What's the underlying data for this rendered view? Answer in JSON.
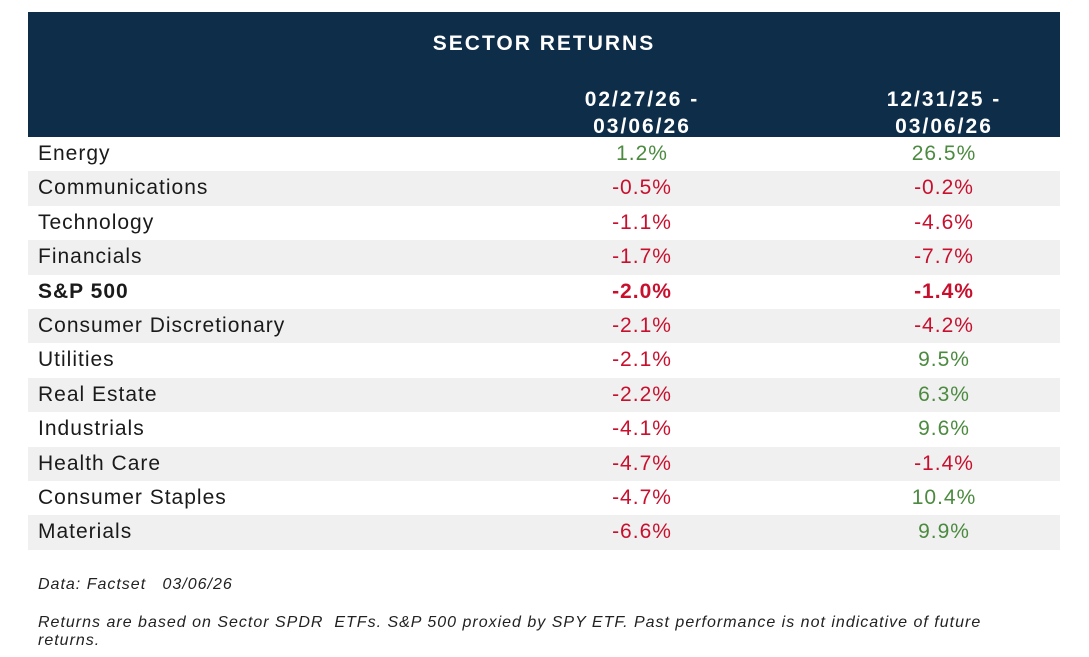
{
  "header": {
    "title": "SECTOR RETURNS",
    "col1_line1": "02/27/26 -",
    "col1_line2": "03/06/26",
    "col2_line1": "12/31/25 -",
    "col2_line2": "03/06/26"
  },
  "colors": {
    "header_bg": "#0e2d49",
    "positive": "#4b8a3f",
    "negative": "#c8102e",
    "alt_row": "#f0f0f0"
  },
  "rows": [
    {
      "name": "Energy",
      "v1": "1.2%",
      "v2": "26.5%",
      "bold": false
    },
    {
      "name": "Communications",
      "v1": "-0.5%",
      "v2": "-0.2%",
      "bold": false
    },
    {
      "name": "Technology",
      "v1": "-1.1%",
      "v2": "-4.6%",
      "bold": false
    },
    {
      "name": "Financials",
      "v1": "-1.7%",
      "v2": "-7.7%",
      "bold": false
    },
    {
      "name": "S&P 500",
      "v1": "-2.0%",
      "v2": "-1.4%",
      "bold": true
    },
    {
      "name": "Consumer Discretionary",
      "v1": "-2.1%",
      "v2": "-4.2%",
      "bold": false
    },
    {
      "name": "Utilities",
      "v1": "-2.1%",
      "v2": "9.5%",
      "bold": false
    },
    {
      "name": "Real Estate",
      "v1": "-2.2%",
      "v2": "6.3%",
      "bold": false
    },
    {
      "name": "Industrials",
      "v1": "-4.1%",
      "v2": "9.6%",
      "bold": false
    },
    {
      "name": "Health Care",
      "v1": "-4.7%",
      "v2": "-1.4%",
      "bold": false
    },
    {
      "name": "Consumer Staples",
      "v1": "-4.7%",
      "v2": "10.4%",
      "bold": false
    },
    {
      "name": "Materials",
      "v1": "-6.6%",
      "v2": "9.9%",
      "bold": false
    }
  ],
  "notes": {
    "source": "Data: Factset   03/06/26",
    "disclaimer": "Returns are based on Sector SPDR  ETFs. S&P 500 proxied by SPY ETF. Past performance is not indicative of future returns."
  }
}
